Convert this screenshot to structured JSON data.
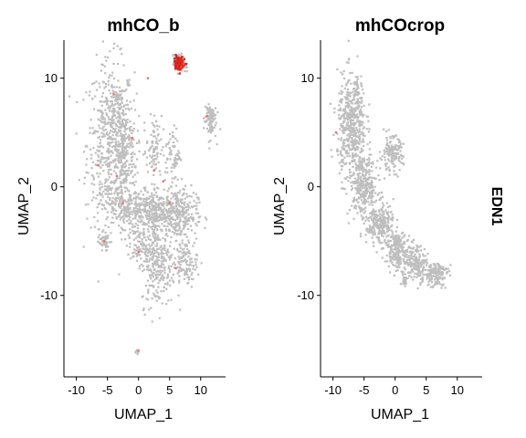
{
  "chart_data": [
    {
      "type": "scatter",
      "title": "mhCO_b",
      "xlabel": "UMAP_1",
      "ylabel": "UMAP_2",
      "xlim": [
        -12,
        14
      ],
      "ylim": [
        -17.5,
        13.5
      ],
      "xticks": [
        "-10",
        "-5",
        "0",
        "5",
        "10"
      ],
      "yticks": [
        "10",
        "0",
        "-10"
      ],
      "grid": false,
      "color_low": "#BEBEBE",
      "color_high": "#E8251E",
      "blobs": [
        {
          "cx": -4.5,
          "cy": 4.0,
          "rx": 3.8,
          "ry": 7.5,
          "n": 520
        },
        {
          "cx": -2.5,
          "cy": 3.0,
          "rx": 2.2,
          "ry": 5.5,
          "n": 260
        },
        {
          "cx": -1.0,
          "cy": -2.0,
          "rx": 5.0,
          "ry": 1.8,
          "n": 240
        },
        {
          "cx": 3.5,
          "cy": -2.5,
          "rx": 4.5,
          "ry": 2.0,
          "n": 300
        },
        {
          "cx": 6.5,
          "cy": -2.5,
          "rx": 3.0,
          "ry": 2.5,
          "n": 220
        },
        {
          "cx": 2.5,
          "cy": 3.5,
          "rx": 1.2,
          "ry": 3.0,
          "n": 80
        },
        {
          "cx": 5.5,
          "cy": 3.0,
          "rx": 1.2,
          "ry": 2.5,
          "n": 70
        },
        {
          "cx": 3.0,
          "cy": -7.0,
          "rx": 2.6,
          "ry": 4.0,
          "n": 260
        },
        {
          "cx": 7.5,
          "cy": -7.0,
          "rx": 2.0,
          "ry": 2.0,
          "n": 120
        },
        {
          "cx": 0.0,
          "cy": -5.5,
          "rx": 1.8,
          "ry": 1.6,
          "n": 80
        },
        {
          "cx": 11.5,
          "cy": 6.2,
          "rx": 1.0,
          "ry": 1.8,
          "n": 90
        },
        {
          "cx": -5.5,
          "cy": -5.0,
          "rx": 0.9,
          "ry": 0.8,
          "n": 45
        },
        {
          "cx": -3.5,
          "cy": 8.0,
          "rx": 0.9,
          "ry": 0.8,
          "n": 30
        },
        {
          "cx": 6.6,
          "cy": 11.3,
          "rx": 1.0,
          "ry": 0.8,
          "n": 90
        },
        {
          "cx": -0.2,
          "cy": -15.2,
          "rx": 0.25,
          "ry": 0.25,
          "n": 6
        }
      ],
      "expressing_cluster": {
        "cx": 6.6,
        "cy": 11.4,
        "rx": 0.9,
        "ry": 0.7,
        "n": 80
      },
      "scattered_expressing": [
        [
          -6.5,
          2.0
        ],
        [
          -3.5,
          1.0
        ],
        [
          -4.0,
          8.5
        ],
        [
          -2.5,
          -1.5
        ],
        [
          2.5,
          1.5
        ],
        [
          5.0,
          -1.5
        ],
        [
          -5.5,
          -5.0
        ],
        [
          0.0,
          -6.0
        ],
        [
          6.0,
          -7.5
        ],
        [
          11.0,
          6.5
        ],
        [
          1.5,
          10.0
        ],
        [
          4.0,
          0.5
        ],
        [
          -1.0,
          4.5
        ],
        [
          0.0,
          -15.1
        ]
      ]
    },
    {
      "type": "scatter",
      "title": "mhCOcrop",
      "xlabel": "UMAP_1",
      "ylabel": "UMAP_2",
      "xlim": [
        -12,
        14
      ],
      "ylim": [
        -17.5,
        13.5
      ],
      "xticks": [
        "-10",
        "-5",
        "0",
        "5",
        "10"
      ],
      "yticks": [
        "10",
        "0",
        "-10"
      ],
      "grid": false,
      "color_low": "#BEBEBE",
      "color_high": "#E8251E",
      "blobs": [
        {
          "cx": -7.0,
          "cy": 5.5,
          "rx": 2.3,
          "ry": 4.8,
          "n": 500
        },
        {
          "cx": -5.0,
          "cy": 0.0,
          "rx": 2.2,
          "ry": 2.5,
          "n": 300
        },
        {
          "cx": -2.5,
          "cy": -3.5,
          "rx": 2.2,
          "ry": 1.8,
          "n": 260
        },
        {
          "cx": 0.5,
          "cy": -6.0,
          "rx": 2.0,
          "ry": 1.6,
          "n": 200
        },
        {
          "cx": 3.5,
          "cy": -7.0,
          "rx": 1.6,
          "ry": 1.6,
          "n": 160
        },
        {
          "cx": 6.5,
          "cy": -8.0,
          "rx": 2.0,
          "ry": 1.2,
          "n": 150
        },
        {
          "cx": -0.5,
          "cy": 3.0,
          "rx": 1.8,
          "ry": 1.6,
          "n": 150
        },
        {
          "cx": -6.0,
          "cy": 9.0,
          "rx": 0.7,
          "ry": 0.8,
          "n": 25
        },
        {
          "cx": 0.3,
          "cy": -5.0,
          "rx": 0.5,
          "ry": 0.5,
          "n": 30
        },
        {
          "cx": 1.5,
          "cy": -8.5,
          "rx": 0.5,
          "ry": 0.5,
          "n": 25
        }
      ],
      "expressing_cluster": null,
      "scattered_expressing": [
        [
          -9.5,
          5.0
        ]
      ]
    }
  ],
  "feature_label": "EDN1"
}
